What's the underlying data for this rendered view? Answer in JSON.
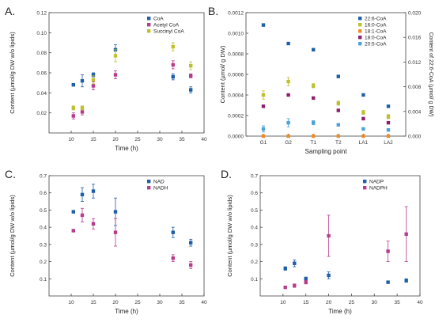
{
  "chart_data": [
    {
      "panel": "A.",
      "type": "scatter",
      "xlabel": "Time (h)",
      "ylabel": "Content (µmol/g DW w/o lipids)",
      "xlim": [
        5,
        40
      ],
      "ylim": [
        0,
        0.12
      ],
      "xticks": [
        10,
        15,
        20,
        25,
        30,
        35,
        40
      ],
      "yticks": [
        0.02,
        0.04,
        0.06,
        0.08,
        0.1,
        0.12
      ],
      "ytick_labels": [
        "0.02",
        "0.04",
        "0.06",
        "0.08",
        "0.10",
        "0.12"
      ],
      "legend_position": "top-right",
      "series": [
        {
          "name": "CoA",
          "color": "#1f5fa8",
          "points": [
            {
              "x": 10.5,
              "y": 0.048,
              "err": 0.001
            },
            {
              "x": 12.5,
              "y": 0.052,
              "err": 0.006
            },
            {
              "x": 15,
              "y": 0.058,
              "err": 0.002
            },
            {
              "x": 20,
              "y": 0.083,
              "err": 0.005
            },
            {
              "x": 33,
              "y": 0.056,
              "err": 0.003
            },
            {
              "x": 37,
              "y": 0.043,
              "err": 0.003
            }
          ]
        },
        {
          "name": "Acetyl CoA",
          "color": "#b83c8c",
          "points": [
            {
              "x": 10.5,
              "y": 0.017,
              "err": 0.003
            },
            {
              "x": 12.5,
              "y": 0.021,
              "err": 0.003
            },
            {
              "x": 15,
              "y": 0.047,
              "err": 0.004
            },
            {
              "x": 20,
              "y": 0.058,
              "err": 0.004
            },
            {
              "x": 33,
              "y": 0.068,
              "err": 0.004
            },
            {
              "x": 37,
              "y": 0.057,
              "err": 0.002
            }
          ]
        },
        {
          "name": "Succinyl CoA",
          "color": "#bfc030",
          "points": [
            {
              "x": 10.5,
              "y": 0.025,
              "err": 0.002
            },
            {
              "x": 12.5,
              "y": 0.025,
              "err": 0.002
            },
            {
              "x": 15,
              "y": 0.053,
              "err": 0.004
            },
            {
              "x": 20,
              "y": 0.077,
              "err": 0.006
            },
            {
              "x": 33,
              "y": 0.086,
              "err": 0.004
            },
            {
              "x": 37,
              "y": 0.067,
              "err": 0.004
            }
          ]
        }
      ]
    },
    {
      "panel": "B.",
      "type": "scatter",
      "xlabel": "Sampling point",
      "ylabel": "Content (µmol/ g DW)",
      "ylabel_right": "Content of 22:6-CoA (µmol/ g DW)",
      "categories": [
        "G1",
        "G2",
        "T1",
        "T2",
        "LA1",
        "LA2"
      ],
      "ylim": [
        0,
        0.0012
      ],
      "yticks": [
        0,
        0.0002,
        0.0004,
        0.0006,
        0.0008,
        0.001,
        0.0012
      ],
      "ytick_labels": [
        "0.0000",
        "0.0002",
        "0.0004",
        "0.0006",
        "0.0008",
        "0.0010",
        "0.0012"
      ],
      "ylim_right": [
        0,
        0.02
      ],
      "yticks_right": [
        0,
        0.004,
        0.008,
        0.012,
        0.016,
        0.02
      ],
      "ytick_labels_right": [
        "0.000",
        "0.004",
        "0.008",
        "0.012",
        "0.016",
        "0.020"
      ],
      "legend_position": "top-right",
      "series": [
        {
          "name": "22:6-CoA",
          "color": "#1f5fa8",
          "axis": "left",
          "values": [
            0.00108,
            0.0009,
            0.00084,
            0.00058,
            0.0004,
            0.00029
          ],
          "err": [
            0,
            0,
            0,
            0,
            0,
            0
          ]
        },
        {
          "name": "16:0-CoA",
          "color": "#bfc030",
          "axis": "left",
          "values": [
            0.0004,
            0.00053,
            0.00049,
            0.00032,
            0.00023,
            0.00019
          ],
          "err": [
            4e-05,
            4e-05,
            2e-05,
            2e-05,
            2e-05,
            2e-05
          ]
        },
        {
          "name": "18:1-CoA",
          "color": "#ef8a26",
          "axis": "left",
          "values": [
            0,
            0,
            0,
            0,
            0,
            0
          ],
          "err": [
            0,
            0,
            0,
            0,
            0,
            0
          ]
        },
        {
          "name": "18:0-CoA",
          "color": "#8e1f6e",
          "axis": "left",
          "values": [
            0.00029,
            0.0004,
            0.00037,
            0.00025,
            0.00017,
            0.00013
          ],
          "err": [
            0,
            0,
            0,
            0,
            0,
            0
          ]
        },
        {
          "name": "20:5-CoA",
          "color": "#4aa3d8",
          "axis": "left",
          "values": [
            7e-05,
            0.00013,
            0.00013,
            0.00011,
            7e-05,
            6e-05
          ],
          "err": [
            3e-05,
            4e-05,
            2e-05,
            1e-05,
            1e-05,
            1e-05
          ]
        }
      ]
    },
    {
      "panel": "C.",
      "type": "scatter",
      "xlabel": "Time (h)",
      "ylabel": "Content (µmol/g DW w/o lipids)",
      "xlim": [
        5,
        40
      ],
      "ylim": [
        0,
        0.7
      ],
      "xticks": [
        10,
        15,
        20,
        25,
        30,
        35,
        40
      ],
      "yticks": [
        0.1,
        0.2,
        0.3,
        0.4,
        0.5,
        0.6,
        0.7
      ],
      "ytick_labels": [
        "0.1",
        "0.2",
        "0.3",
        "0.4",
        "0.5",
        "0.6",
        "0.7"
      ],
      "legend_position": "top-right",
      "series": [
        {
          "name": "NAD",
          "color": "#1f5fa8",
          "points": [
            {
              "x": 10.5,
              "y": 0.49,
              "err": 0.005
            },
            {
              "x": 12.5,
              "y": 0.59,
              "err": 0.04
            },
            {
              "x": 15,
              "y": 0.61,
              "err": 0.04
            },
            {
              "x": 20,
              "y": 0.49,
              "err": 0.08
            },
            {
              "x": 33,
              "y": 0.37,
              "err": 0.03
            },
            {
              "x": 37,
              "y": 0.31,
              "err": 0.02
            }
          ]
        },
        {
          "name": "NADH",
          "color": "#b83c8c",
          "points": [
            {
              "x": 10.5,
              "y": 0.38,
              "err": 0.005
            },
            {
              "x": 12.5,
              "y": 0.47,
              "err": 0.04
            },
            {
              "x": 15,
              "y": 0.42,
              "err": 0.03
            },
            {
              "x": 20,
              "y": 0.37,
              "err": 0.08
            },
            {
              "x": 33,
              "y": 0.22,
              "err": 0.02
            },
            {
              "x": 37,
              "y": 0.18,
              "err": 0.02
            }
          ]
        }
      ]
    },
    {
      "panel": "D.",
      "type": "scatter",
      "xlabel": "Time (h)",
      "ylabel": "Content (µmol/g DW w/o lipids)",
      "xlim": [
        5,
        40
      ],
      "ylim": [
        0,
        0.7
      ],
      "xticks": [
        10,
        15,
        20,
        25,
        30,
        35,
        40
      ],
      "yticks": [
        0.1,
        0.2,
        0.3,
        0.4,
        0.5,
        0.6,
        0.7
      ],
      "ytick_labels": [
        "0.1",
        "0.2",
        "0.3",
        "0.4",
        "0.5",
        "0.6",
        "0.7"
      ],
      "legend_position": "top-right",
      "series": [
        {
          "name": "NADP",
          "color": "#1f5fa8",
          "points": [
            {
              "x": 10.5,
              "y": 0.16,
              "err": 0.01
            },
            {
              "x": 12.5,
              "y": 0.19,
              "err": 0.02
            },
            {
              "x": 15,
              "y": 0.1,
              "err": 0.01
            },
            {
              "x": 20,
              "y": 0.12,
              "err": 0.02
            },
            {
              "x": 33,
              "y": 0.08,
              "err": 0.005
            },
            {
              "x": 37,
              "y": 0.09,
              "err": 0.01
            }
          ]
        },
        {
          "name": "NADPH",
          "color": "#b83c8c",
          "points": [
            {
              "x": 10.5,
              "y": 0.05,
              "err": 0.005
            },
            {
              "x": 12.5,
              "y": 0.06,
              "err": 0.01
            },
            {
              "x": 15,
              "y": 0.08,
              "err": 0.01
            },
            {
              "x": 20,
              "y": 0.35,
              "err": 0.12
            },
            {
              "x": 33,
              "y": 0.26,
              "err": 0.06
            },
            {
              "x": 37,
              "y": 0.36,
              "err": 0.16
            }
          ]
        }
      ]
    }
  ]
}
